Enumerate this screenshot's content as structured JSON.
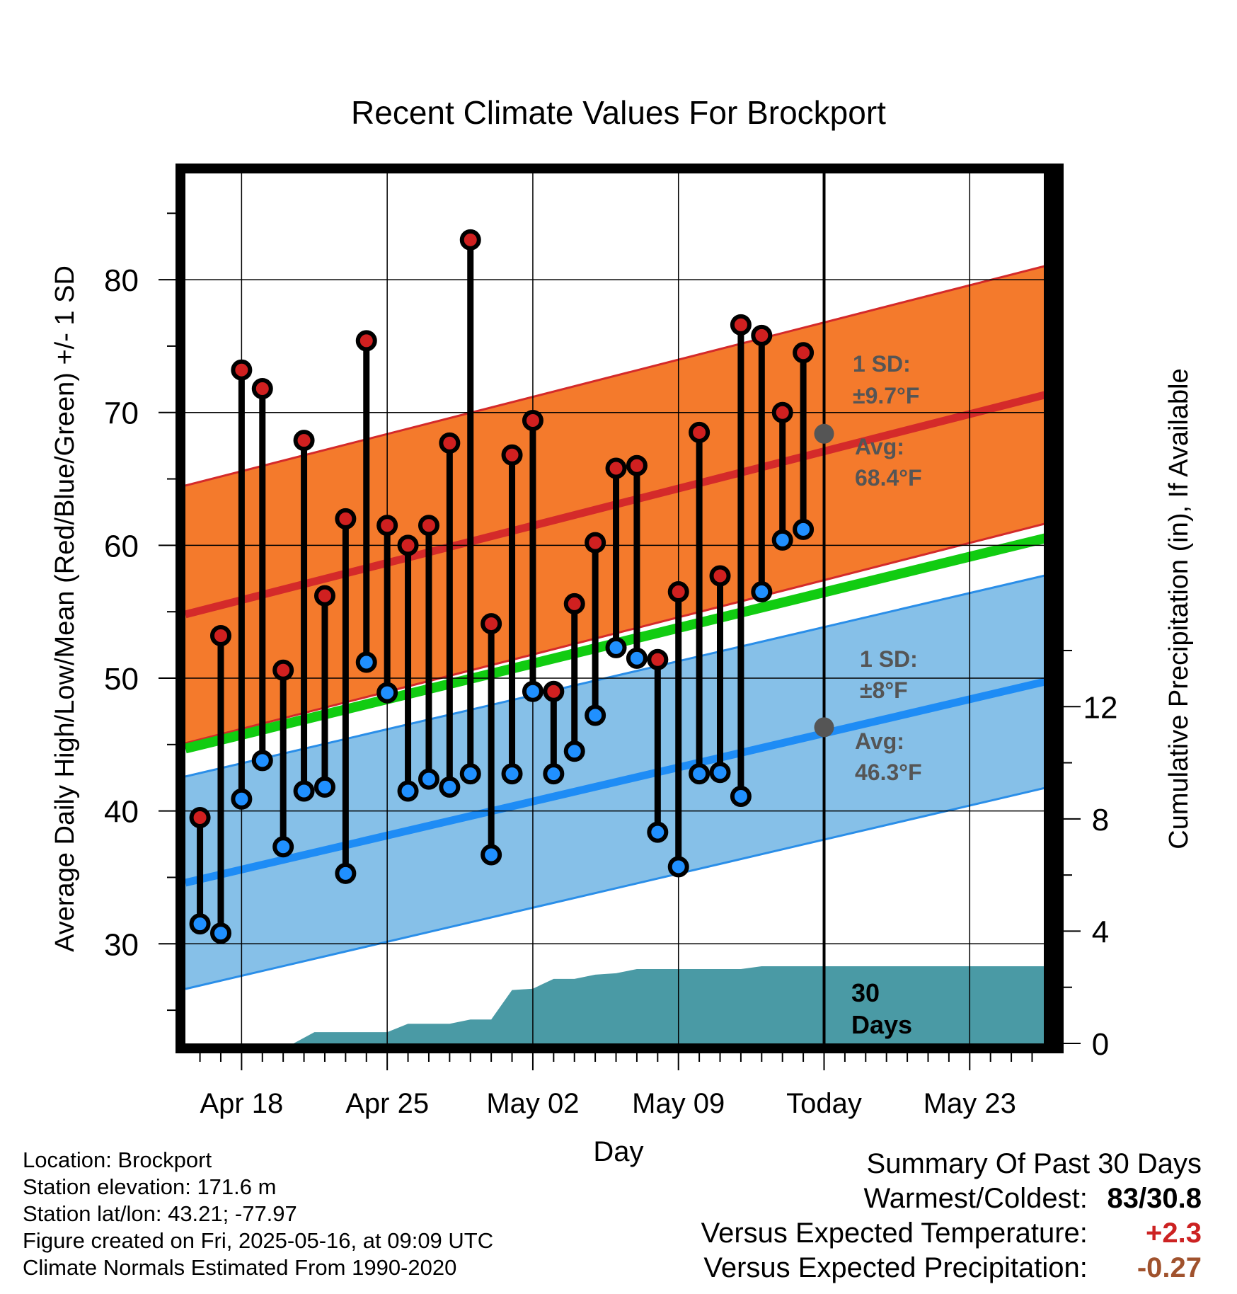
{
  "chart_data": {
    "type": "line",
    "title": "Recent Climate Values For Brockport",
    "xlabel": "Day",
    "ylabel": "Average Daily High/Low/Mean (Red/Blue/Green) +/- 1 SD",
    "ylabel_right": "Cumulative Precipitation (in), If Available",
    "ylim": [
      22.5,
      88
    ],
    "ylim_right": [
      0,
      31
    ],
    "yticks": [
      30,
      40,
      50,
      60,
      70,
      80
    ],
    "yticks_right": [
      0,
      4,
      8,
      12
    ],
    "xlim": [
      -0.7,
      40.8
    ],
    "xticks": [
      {
        "day": 2,
        "label": "Apr 18"
      },
      {
        "day": 9,
        "label": "Apr 25"
      },
      {
        "day": 16,
        "label": "May 02"
      },
      {
        "day": 23,
        "label": "May 09"
      },
      {
        "day": 30,
        "label": "Today"
      },
      {
        "day": 37,
        "label": "May 23"
      }
    ],
    "today_day": 30,
    "days_label": "30\nDays",
    "normals": {
      "high_mean": [
        54.8,
        71.4
      ],
      "high_sd": 9.7,
      "low_mean": [
        34.6,
        49.8
      ],
      "low_sd": 8,
      "avg_mean": [
        44.7,
        60.6
      ]
    },
    "annotations": {
      "high_sd_line1": "1 SD:",
      "high_sd_line2": "±9.7°F",
      "high_avg_line1": "Avg:",
      "high_avg_line2": "68.4°F",
      "high_avg_value": 68.4,
      "low_sd_line1": "1 SD:",
      "low_sd_line2": "±8°F",
      "low_avg_line1": "Avg:",
      "low_avg_line2": "46.3°F",
      "low_avg_value": 46.3
    },
    "series": [
      {
        "name": "High",
        "color": "#d02020",
        "values": [
          39.5,
          53.2,
          73.2,
          71.8,
          50.6,
          67.9,
          56.2,
          62.0,
          75.4,
          61.5,
          60.0,
          61.5,
          67.7,
          83.0,
          54.1,
          66.8,
          69.4,
          49.0,
          55.6,
          60.2,
          65.8,
          66.0,
          51.4,
          56.5,
          68.5,
          57.7,
          76.6,
          75.8,
          70.0,
          74.5
        ]
      },
      {
        "name": "Low",
        "color": "#2090ff",
        "values": [
          31.5,
          30.8,
          40.9,
          43.8,
          37.3,
          41.5,
          41.8,
          35.3,
          51.2,
          48.9,
          41.5,
          42.4,
          41.8,
          42.8,
          36.7,
          42.8,
          49.0,
          42.8,
          44.5,
          47.2,
          52.3,
          51.5,
          38.4,
          35.8,
          42.8,
          42.9,
          41.1,
          56.5,
          60.4,
          61.2
        ]
      }
    ],
    "precip": {
      "name": "Cumulative Precipitation",
      "color": "#4a9aa5",
      "days": [
        4.5,
        5.5,
        9,
        10,
        12,
        13,
        14,
        15,
        16,
        17,
        18,
        19,
        20,
        21,
        22,
        23,
        24,
        25,
        26,
        27,
        28,
        29,
        30,
        40.8
      ],
      "values": [
        0,
        0.4,
        0.4,
        0.7,
        0.7,
        0.85,
        0.85,
        1.9,
        1.95,
        2.3,
        2.3,
        2.45,
        2.5,
        2.65,
        2.65,
        2.65,
        2.65,
        2.65,
        2.65,
        2.75,
        2.75,
        2.75,
        2.75,
        2.75
      ]
    }
  },
  "location": {
    "name_line": "Location: Brockport",
    "elevation_line": "Station elevation: 171.6 m",
    "latlon_line": "Station lat/lon: 43.21; -77.97",
    "created_line": "Figure created on Fri, 2025-05-16, at 09:09 UTC",
    "normals_line": "Climate Normals Estimated From 1990-2020"
  },
  "summary": {
    "title": "Summary Of Past 30 Days",
    "warmest_coldest_label": "Warmest/Coldest:",
    "warmest_coldest_value": "83/30.8",
    "temp_label": "Versus Expected Temperature:",
    "temp_value": "+2.3",
    "precip_label": "Versus Expected Precipitation:",
    "precip_value": "-0.27",
    "colors": {
      "warm": "#cc2222",
      "dry": "#a0522d"
    }
  }
}
